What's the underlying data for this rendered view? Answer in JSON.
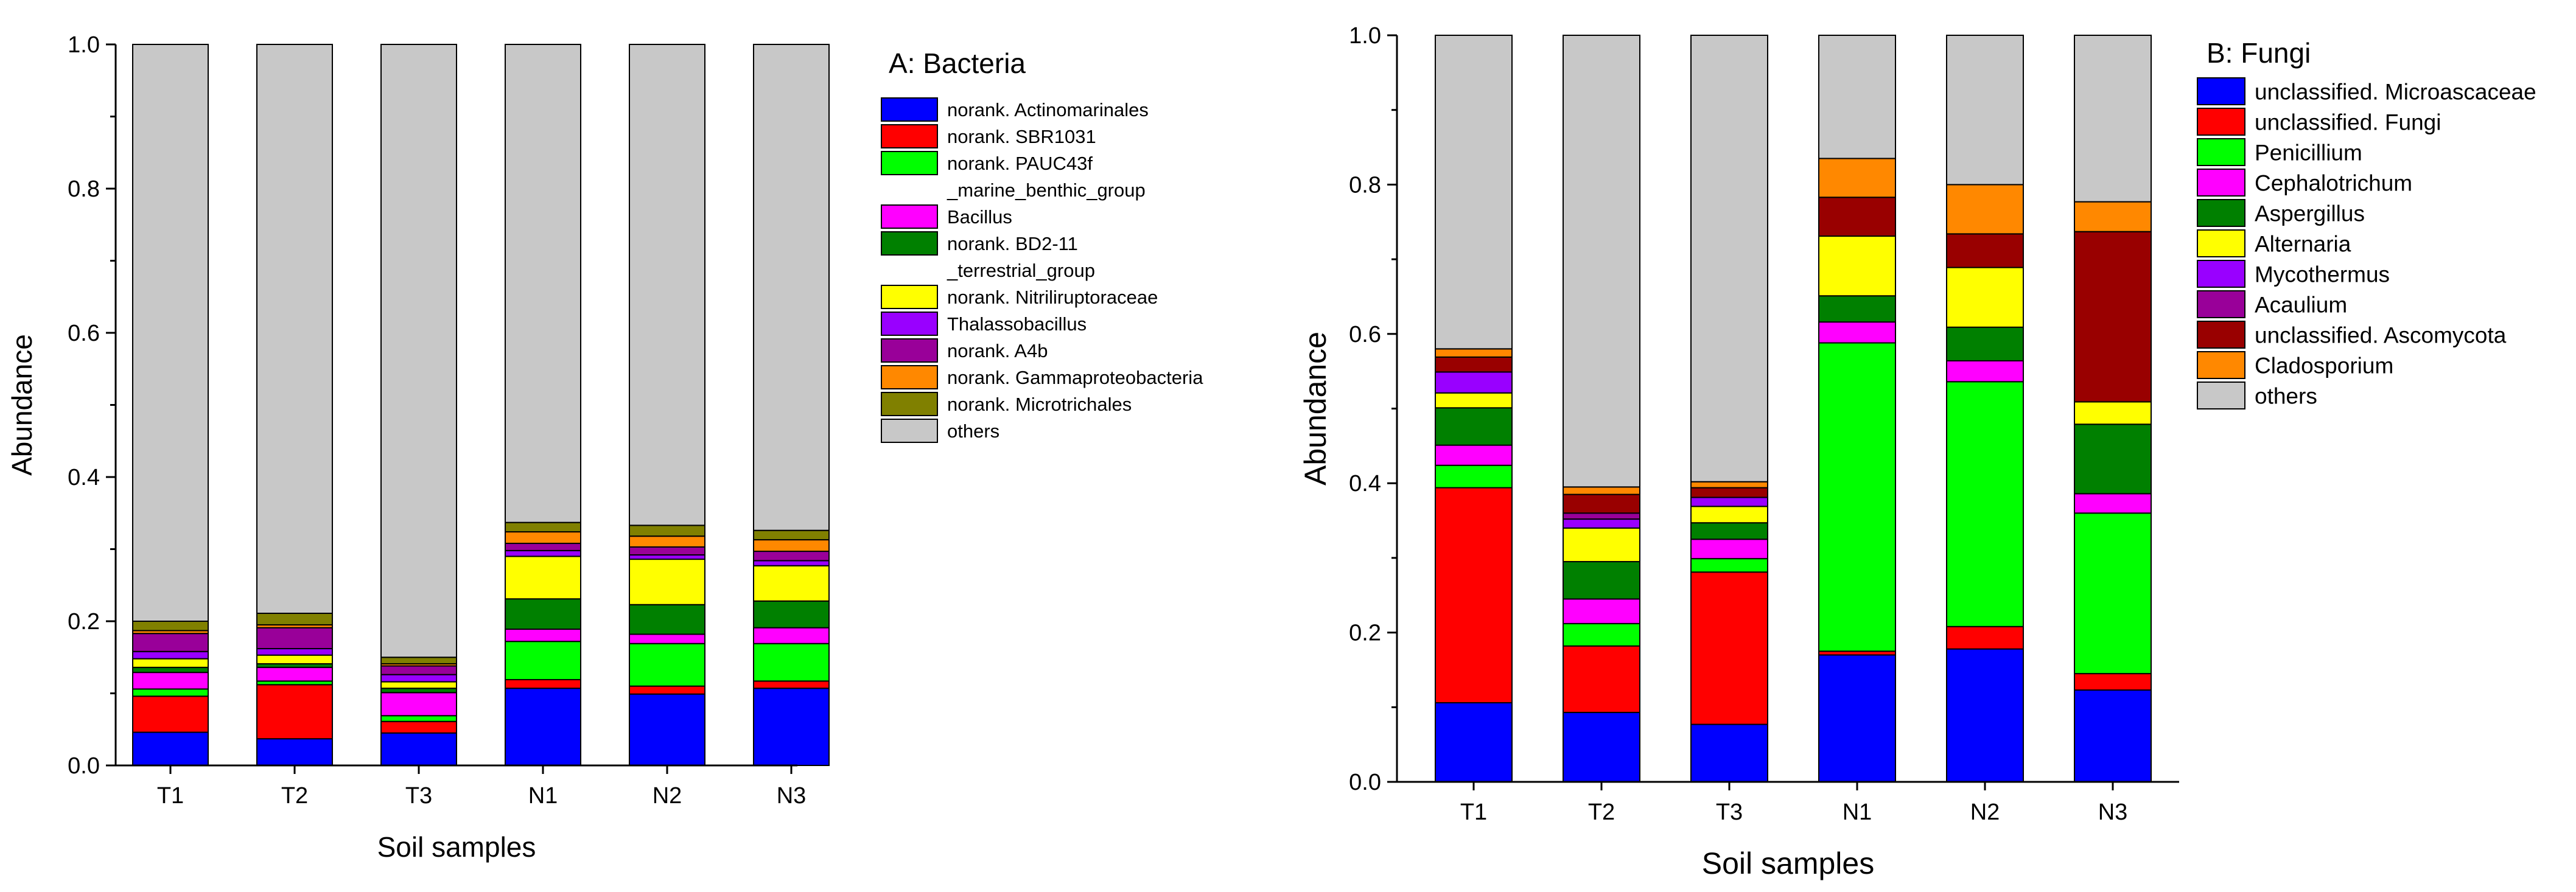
{
  "chart_data": [
    {
      "type": "bar",
      "stacked": true,
      "title": "A: Bacteria",
      "xlabel": "Soil samples",
      "ylabel": "Abundance",
      "ylim": [
        0,
        1.0
      ],
      "yticks": [
        "0.0",
        "0.2",
        "0.4",
        "0.6",
        "0.8",
        "1.0"
      ],
      "categories": [
        "T1",
        "T2",
        "T3",
        "N1",
        "N2",
        "N3"
      ],
      "legend_position": "top-right",
      "series": [
        {
          "name": "norank. Actinomarinales",
          "legend_lines": [
            "norank. Actinomarinales"
          ],
          "color": "#0000ff",
          "values": [
            0.046,
            0.037,
            0.045,
            0.107,
            0.099,
            0.107
          ]
        },
        {
          "name": "norank. SBR1031",
          "legend_lines": [
            "norank. SBR1031"
          ],
          "color": "#ff0000",
          "values": [
            0.05,
            0.075,
            0.016,
            0.012,
            0.011,
            0.01
          ]
        },
        {
          "name": "norank. PAUC43f _marine_benthic_group",
          "legend_lines": [
            "norank. PAUC43f",
            "_marine_benthic_group"
          ],
          "color": "#00ff00",
          "values": [
            0.01,
            0.005,
            0.008,
            0.053,
            0.059,
            0.052
          ]
        },
        {
          "name": "Bacillus",
          "legend_lines": [
            "Bacillus"
          ],
          "color": "#ff00ff",
          "values": [
            0.023,
            0.019,
            0.032,
            0.017,
            0.013,
            0.022
          ]
        },
        {
          "name": "norank. BD2-11 _terrestrial_group",
          "legend_lines": [
            "norank. BD2-11",
            "_terrestrial_group"
          ],
          "color": "#008000",
          "values": [
            0.007,
            0.005,
            0.006,
            0.042,
            0.041,
            0.037
          ]
        },
        {
          "name": "norank. Nitriliruptoraceae",
          "legend_lines": [
            "norank. Nitriliruptoraceae"
          ],
          "color": "#ffff00",
          "values": [
            0.012,
            0.012,
            0.009,
            0.059,
            0.063,
            0.049
          ]
        },
        {
          "name": "Thalassobacillus",
          "legend_lines": [
            "Thalassobacillus"
          ],
          "color": "#9900ff",
          "values": [
            0.01,
            0.009,
            0.01,
            0.008,
            0.006,
            0.007
          ]
        },
        {
          "name": "norank. A4b",
          "legend_lines": [
            "norank. A4b"
          ],
          "color": "#990099",
          "values": [
            0.025,
            0.029,
            0.012,
            0.01,
            0.011,
            0.013
          ]
        },
        {
          "name": "norank. Gammaproteobacteria",
          "legend_lines": [
            "norank. Gammaproteobacteria"
          ],
          "color": "#ff8800",
          "values": [
            0.004,
            0.004,
            0.003,
            0.016,
            0.015,
            0.016
          ]
        },
        {
          "name": "norank. Microtrichales",
          "legend_lines": [
            "norank. Microtrichales"
          ],
          "color": "#808000",
          "values": [
            0.013,
            0.016,
            0.009,
            0.013,
            0.015,
            0.013
          ]
        },
        {
          "name": "others",
          "legend_lines": [
            "others"
          ],
          "color": "#c8c8c8",
          "values": [
            0.8,
            0.789,
            0.85,
            0.663,
            0.667,
            0.674
          ]
        }
      ]
    },
    {
      "type": "bar",
      "stacked": true,
      "title": "B: Fungi",
      "xlabel": "Soil samples",
      "ylabel": "Abundance",
      "ylim": [
        0,
        1.0
      ],
      "yticks": [
        "0.0",
        "0.2",
        "0.4",
        "0.6",
        "0.8",
        "1.0"
      ],
      "categories": [
        "T1",
        "T2",
        "T3",
        "N1",
        "N2",
        "N3"
      ],
      "legend_position": "top-right",
      "series": [
        {
          "name": "unclassified. Microascaceae",
          "legend_lines": [
            "unclassified. Microascaceae"
          ],
          "color": "#0000ff",
          "values": [
            0.106,
            0.093,
            0.077,
            0.17,
            0.178,
            0.123
          ]
        },
        {
          "name": "unclassified. Fungi",
          "legend_lines": [
            "unclassified. Fungi"
          ],
          "color": "#ff0000",
          "values": [
            0.288,
            0.089,
            0.204,
            0.005,
            0.03,
            0.022
          ]
        },
        {
          "name": "Penicillium",
          "legend_lines": [
            "Penicillium"
          ],
          "color": "#00ff00",
          "values": [
            0.03,
            0.03,
            0.018,
            0.413,
            0.328,
            0.215
          ]
        },
        {
          "name": "Cephalotrichum",
          "legend_lines": [
            "Cephalotrichum"
          ],
          "color": "#ff00ff",
          "values": [
            0.027,
            0.033,
            0.026,
            0.028,
            0.028,
            0.026
          ]
        },
        {
          "name": "Aspergillus",
          "legend_lines": [
            "Aspergillus"
          ],
          "color": "#008000",
          "values": [
            0.05,
            0.05,
            0.022,
            0.035,
            0.045,
            0.093
          ]
        },
        {
          "name": "Alternaria",
          "legend_lines": [
            "Alternaria"
          ],
          "color": "#ffff00",
          "values": [
            0.02,
            0.045,
            0.022,
            0.08,
            0.08,
            0.03
          ]
        },
        {
          "name": "Mycothermus",
          "legend_lines": [
            "Mycothermus"
          ],
          "color": "#9900ff",
          "values": [
            0.028,
            0.012,
            0.012,
            0.0,
            0.0,
            0.0
          ]
        },
        {
          "name": "Acaulium",
          "legend_lines": [
            "Acaulium"
          ],
          "color": "#990099",
          "values": [
            0.0,
            0.008,
            0.0,
            0.0,
            0.0,
            0.0
          ]
        },
        {
          "name": "unclassified. Ascomycota",
          "legend_lines": [
            "unclassified. Ascomycota"
          ],
          "color": "#990000",
          "values": [
            0.02,
            0.025,
            0.013,
            0.052,
            0.045,
            0.228
          ]
        },
        {
          "name": "Cladosporium",
          "legend_lines": [
            "Cladosporium"
          ],
          "color": "#ff8800",
          "values": [
            0.011,
            0.01,
            0.008,
            0.052,
            0.066,
            0.04
          ]
        },
        {
          "name": "others",
          "legend_lines": [
            "others"
          ],
          "color": "#c8c8c8",
          "values": [
            0.42,
            0.605,
            0.598,
            0.165,
            0.2,
            0.223
          ]
        }
      ]
    }
  ]
}
